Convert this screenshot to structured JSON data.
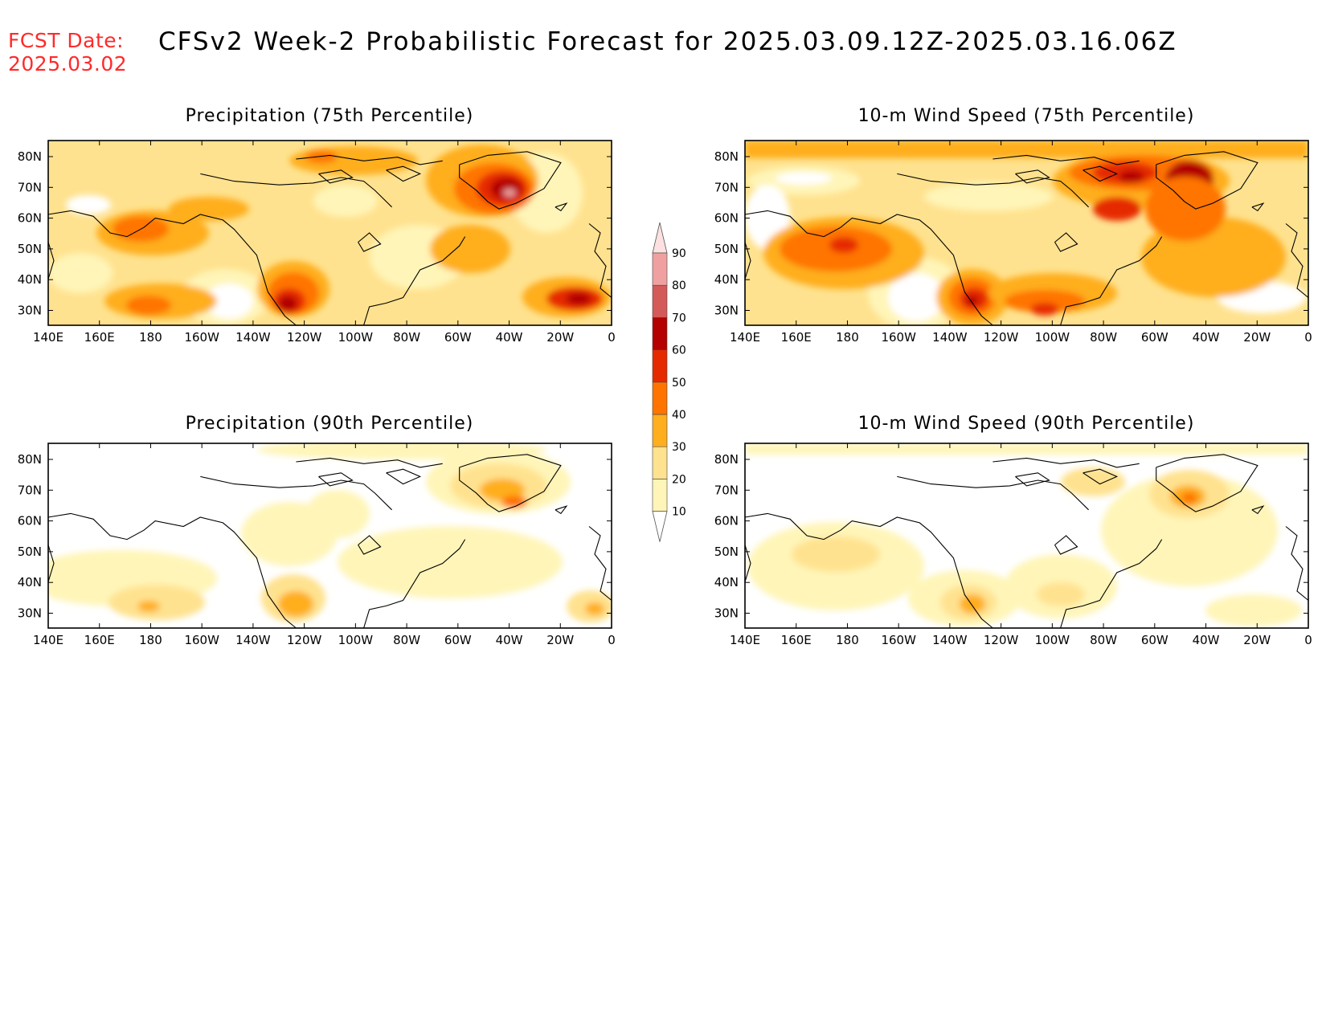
{
  "header": {
    "fcst_label": "FCST Date:",
    "fcst_date": "2025.03.02",
    "title": "CFSv2 Week-2 Probabilistic Forecast for 2025.03.09.12Z-2025.03.16.06Z"
  },
  "panels": [
    {
      "title": "Precipitation (75th Percentile)"
    },
    {
      "title": "10-m Wind Speed (75th Percentile)"
    },
    {
      "title": "Precipitation (90th Percentile)"
    },
    {
      "title": "10-m Wind Speed (90th Percentile)"
    }
  ],
  "axes": {
    "lon_labels": [
      "140E",
      "160E",
      "180",
      "160W",
      "140W",
      "120W",
      "100W",
      "80W",
      "60W",
      "40W",
      "20W",
      "0"
    ],
    "lat_labels": [
      "80N",
      "70N",
      "60N",
      "50N",
      "40N",
      "30N"
    ]
  },
  "legend": {
    "levels": [
      "10",
      "20",
      "30",
      "40",
      "50",
      "60",
      "70",
      "80",
      "90"
    ],
    "colors": [
      "#fff5b8",
      "#ffe28f",
      "#ffae1e",
      "#ff7400",
      "#e62a00",
      "#b40000",
      "#d45a5a",
      "#f0a0a0",
      "#fde0e0"
    ]
  }
}
